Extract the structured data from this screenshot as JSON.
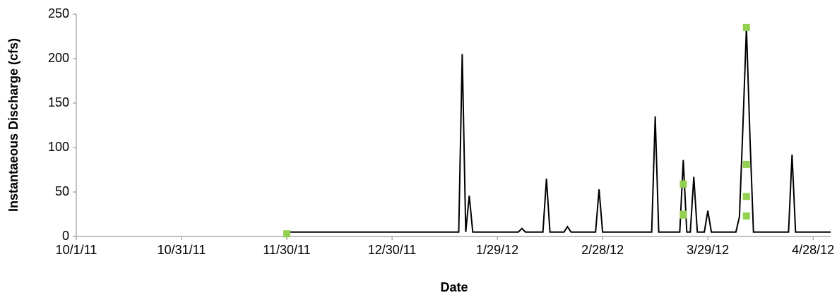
{
  "chart_data": {
    "type": "line",
    "x_label": "Date",
    "y_label": "Instantaeous Discharge (cfs)",
    "xlim": [
      "2011-10-01",
      "2012-05-03"
    ],
    "xticks": [
      {
        "value": "2011-10-01",
        "label": "10/1/11"
      },
      {
        "value": "2011-10-31",
        "label": "10/31/11"
      },
      {
        "value": "2011-11-30",
        "label": "11/30/11"
      },
      {
        "value": "2011-12-30",
        "label": "12/30/11"
      },
      {
        "value": "2012-01-29",
        "label": "1/29/12"
      },
      {
        "value": "2012-02-28",
        "label": "2/28/12"
      },
      {
        "value": "2012-03-29",
        "label": "3/29/12"
      },
      {
        "value": "2012-04-28",
        "label": "4/28/12"
      }
    ],
    "ylim": [
      0,
      250
    ],
    "yticks": [
      0,
      50,
      100,
      150,
      200,
      250
    ],
    "grid": false,
    "series": [
      {
        "type": "line",
        "color": "#000000",
        "x": [
          "2011-11-30",
          "2012-01-18",
          "2012-01-19",
          "2012-01-20",
          "2012-01-21",
          "2012-01-22",
          "2012-02-04",
          "2012-02-05",
          "2012-02-06",
          "2012-02-11",
          "2012-02-12",
          "2012-02-13",
          "2012-02-17",
          "2012-02-18",
          "2012-02-19",
          "2012-02-26",
          "2012-02-27",
          "2012-02-28",
          "2012-03-13",
          "2012-03-14",
          "2012-03-15",
          "2012-03-21",
          "2012-03-22",
          "2012-03-23",
          "2012-03-24",
          "2012-03-25",
          "2012-03-26",
          "2012-03-28",
          "2012-03-29",
          "2012-03-30",
          "2012-04-06",
          "2012-04-07",
          "2012-04-08",
          "2012-04-09",
          "2012-04-10",
          "2012-04-11",
          "2012-04-21",
          "2012-04-22",
          "2012-04-23",
          "2012-05-03"
        ],
        "values": [
          5,
          5,
          205,
          5,
          46,
          5,
          5,
          9,
          5,
          5,
          65,
          5,
          5,
          11,
          5,
          5,
          53,
          5,
          5,
          135,
          5,
          5,
          86,
          5,
          5,
          67,
          5,
          5,
          29,
          5,
          5,
          22,
          124,
          235,
          112,
          5,
          5,
          92,
          5,
          5
        ]
      },
      {
        "type": "scatter",
        "color": "#92d050",
        "x": [
          "2011-11-30",
          "2012-03-22",
          "2012-03-22",
          "2012-03-22",
          "2012-04-09",
          "2012-04-09",
          "2012-04-09",
          "2012-04-09"
        ],
        "values": [
          3,
          24,
          25,
          59,
          235,
          81,
          45,
          23
        ]
      }
    ]
  }
}
